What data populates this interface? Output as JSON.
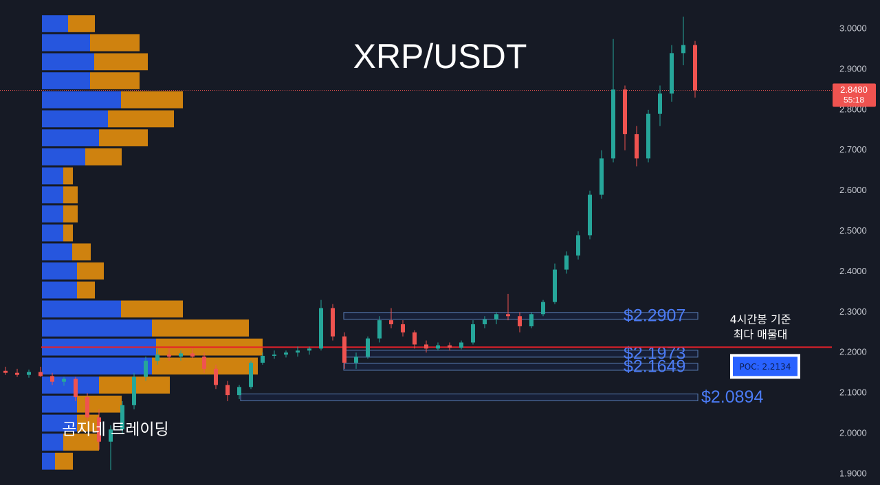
{
  "chart_data": {
    "type": "candlestick",
    "title": "XRP/USDT",
    "watermark": "곰지네 트레이딩",
    "annotation": [
      "4시간봉 기준",
      "최다 매물대"
    ],
    "ylim": [
      1.8728,
      3.0713
    ],
    "yticks": [
      {
        "value": 1.9,
        "label": "1.9000"
      },
      {
        "value": 2.0,
        "label": "2.0000"
      },
      {
        "value": 2.1,
        "label": "2.1000"
      },
      {
        "value": 2.2,
        "label": "2.2000"
      },
      {
        "value": 2.3,
        "label": "2.3000"
      },
      {
        "value": 2.4,
        "label": "2.4000"
      },
      {
        "value": 2.5,
        "label": "2.5000"
      },
      {
        "value": 2.6,
        "label": "2.6000"
      },
      {
        "value": 2.7,
        "label": "2.7000"
      },
      {
        "value": 2.8,
        "label": "2.8000"
      },
      {
        "value": 2.9,
        "label": "2.9000"
      },
      {
        "value": 3.0,
        "label": "3.0000"
      }
    ],
    "grid": false,
    "up_color": "#26a69a",
    "down_color": "#ef5350",
    "ohlc": [
      [
        2.155,
        2.165,
        2.145,
        2.15
      ],
      [
        2.15,
        2.16,
        2.14,
        2.145
      ],
      [
        2.145,
        2.158,
        2.138,
        2.152
      ],
      [
        2.152,
        2.165,
        2.14,
        2.142
      ],
      [
        2.142,
        2.15,
        2.12,
        2.128
      ],
      [
        2.128,
        2.14,
        2.118,
        2.135
      ],
      [
        2.135,
        2.14,
        2.08,
        2.09
      ],
      [
        2.09,
        2.1,
        2.03,
        2.04
      ],
      [
        2.04,
        2.06,
        1.96,
        1.98
      ],
      [
        1.98,
        2.02,
        1.91,
        2.01
      ],
      [
        2.01,
        2.08,
        2.0,
        2.07
      ],
      [
        2.07,
        2.15,
        2.06,
        2.14
      ],
      [
        2.14,
        2.19,
        2.13,
        2.18
      ],
      [
        2.18,
        2.21,
        2.17,
        2.195
      ],
      [
        2.195,
        2.21,
        2.18,
        2.19
      ],
      [
        2.19,
        2.205,
        2.18,
        2.198
      ],
      [
        2.198,
        2.21,
        2.185,
        2.19
      ],
      [
        2.19,
        2.2,
        2.15,
        2.16
      ],
      [
        2.16,
        2.17,
        2.11,
        2.12
      ],
      [
        2.12,
        2.13,
        2.08,
        2.095
      ],
      [
        2.095,
        2.12,
        2.085,
        2.115
      ],
      [
        2.115,
        2.18,
        2.11,
        2.175
      ],
      [
        2.175,
        2.2,
        2.17,
        2.192
      ],
      [
        2.192,
        2.205,
        2.185,
        2.195
      ],
      [
        2.195,
        2.205,
        2.188,
        2.2
      ],
      [
        2.2,
        2.215,
        2.19,
        2.205
      ],
      [
        2.205,
        2.215,
        2.195,
        2.21
      ],
      [
        2.21,
        2.33,
        2.205,
        2.31
      ],
      [
        2.31,
        2.32,
        2.23,
        2.24
      ],
      [
        2.24,
        2.25,
        2.16,
        2.175
      ],
      [
        2.175,
        2.2,
        2.16,
        2.19
      ],
      [
        2.19,
        2.24,
        2.185,
        2.235
      ],
      [
        2.235,
        2.29,
        2.225,
        2.28
      ],
      [
        2.28,
        2.31,
        2.26,
        2.27
      ],
      [
        2.27,
        2.28,
        2.24,
        2.25
      ],
      [
        2.25,
        2.255,
        2.21,
        2.22
      ],
      [
        2.22,
        2.23,
        2.2,
        2.21
      ],
      [
        2.21,
        2.225,
        2.205,
        2.218
      ],
      [
        2.218,
        2.225,
        2.205,
        2.212
      ],
      [
        2.212,
        2.23,
        2.208,
        2.225
      ],
      [
        2.225,
        2.28,
        2.22,
        2.27
      ],
      [
        2.27,
        2.29,
        2.26,
        2.282
      ],
      [
        2.282,
        2.3,
        2.27,
        2.295
      ],
      [
        2.295,
        2.345,
        2.28,
        2.29
      ],
      [
        2.29,
        2.3,
        2.25,
        2.265
      ],
      [
        2.265,
        2.3,
        2.26,
        2.295
      ],
      [
        2.295,
        2.33,
        2.29,
        2.325
      ],
      [
        2.325,
        2.42,
        2.32,
        2.405
      ],
      [
        2.405,
        2.45,
        2.395,
        2.44
      ],
      [
        2.44,
        2.5,
        2.43,
        2.49
      ],
      [
        2.49,
        2.6,
        2.48,
        2.59
      ],
      [
        2.59,
        2.7,
        2.58,
        2.68
      ],
      [
        2.68,
        2.975,
        2.67,
        2.85
      ],
      [
        2.85,
        2.86,
        2.7,
        2.74
      ],
      [
        2.74,
        2.76,
        2.66,
        2.68
      ],
      [
        2.68,
        2.8,
        2.67,
        2.79
      ],
      [
        2.79,
        2.86,
        2.76,
        2.84
      ],
      [
        2.84,
        2.96,
        2.82,
        2.94
      ],
      [
        2.94,
        3.03,
        2.91,
        2.96
      ],
      [
        2.96,
        2.97,
        2.83,
        2.848
      ]
    ],
    "profile": {
      "buy_color": "#2962ff",
      "sell_color": "#f0950c",
      "levels": [
        3.0127,
        2.9657,
        2.9187,
        2.8717,
        2.8247,
        2.7777,
        2.7307,
        2.6837,
        2.6367,
        2.5897,
        2.5427,
        2.4957,
        2.4487,
        2.4017,
        2.3547,
        2.3077,
        2.2607,
        2.2137,
        2.1667,
        2.1197,
        2.0727,
        2.0257,
        1.9787,
        1.9317
      ],
      "buy": [
        38,
        70,
        76,
        70,
        115,
        96,
        83,
        63,
        31,
        31,
        31,
        31,
        44,
        51,
        51,
        115,
        160,
        166,
        160,
        83,
        51,
        51,
        31,
        19
      ],
      "sell": [
        39,
        72,
        78,
        72,
        90,
        96,
        71,
        53,
        14,
        21,
        21,
        14,
        27,
        39,
        26,
        90,
        141,
        155,
        154,
        103,
        65,
        32,
        52,
        26
      ]
    },
    "levels": [
      {
        "value": 2.2907,
        "label": "$2.2907"
      },
      {
        "value": 2.1973,
        "label": "$2.1973"
      },
      {
        "value": 2.1649,
        "label": "$2.1649"
      },
      {
        "value": 2.0894,
        "label": "$2.0894"
      }
    ],
    "poc": {
      "value": 2.2134,
      "label": "POC: 2.2134"
    },
    "last_price": {
      "value": 2.848,
      "label": "2.8480"
    },
    "countdown": "55:18"
  }
}
